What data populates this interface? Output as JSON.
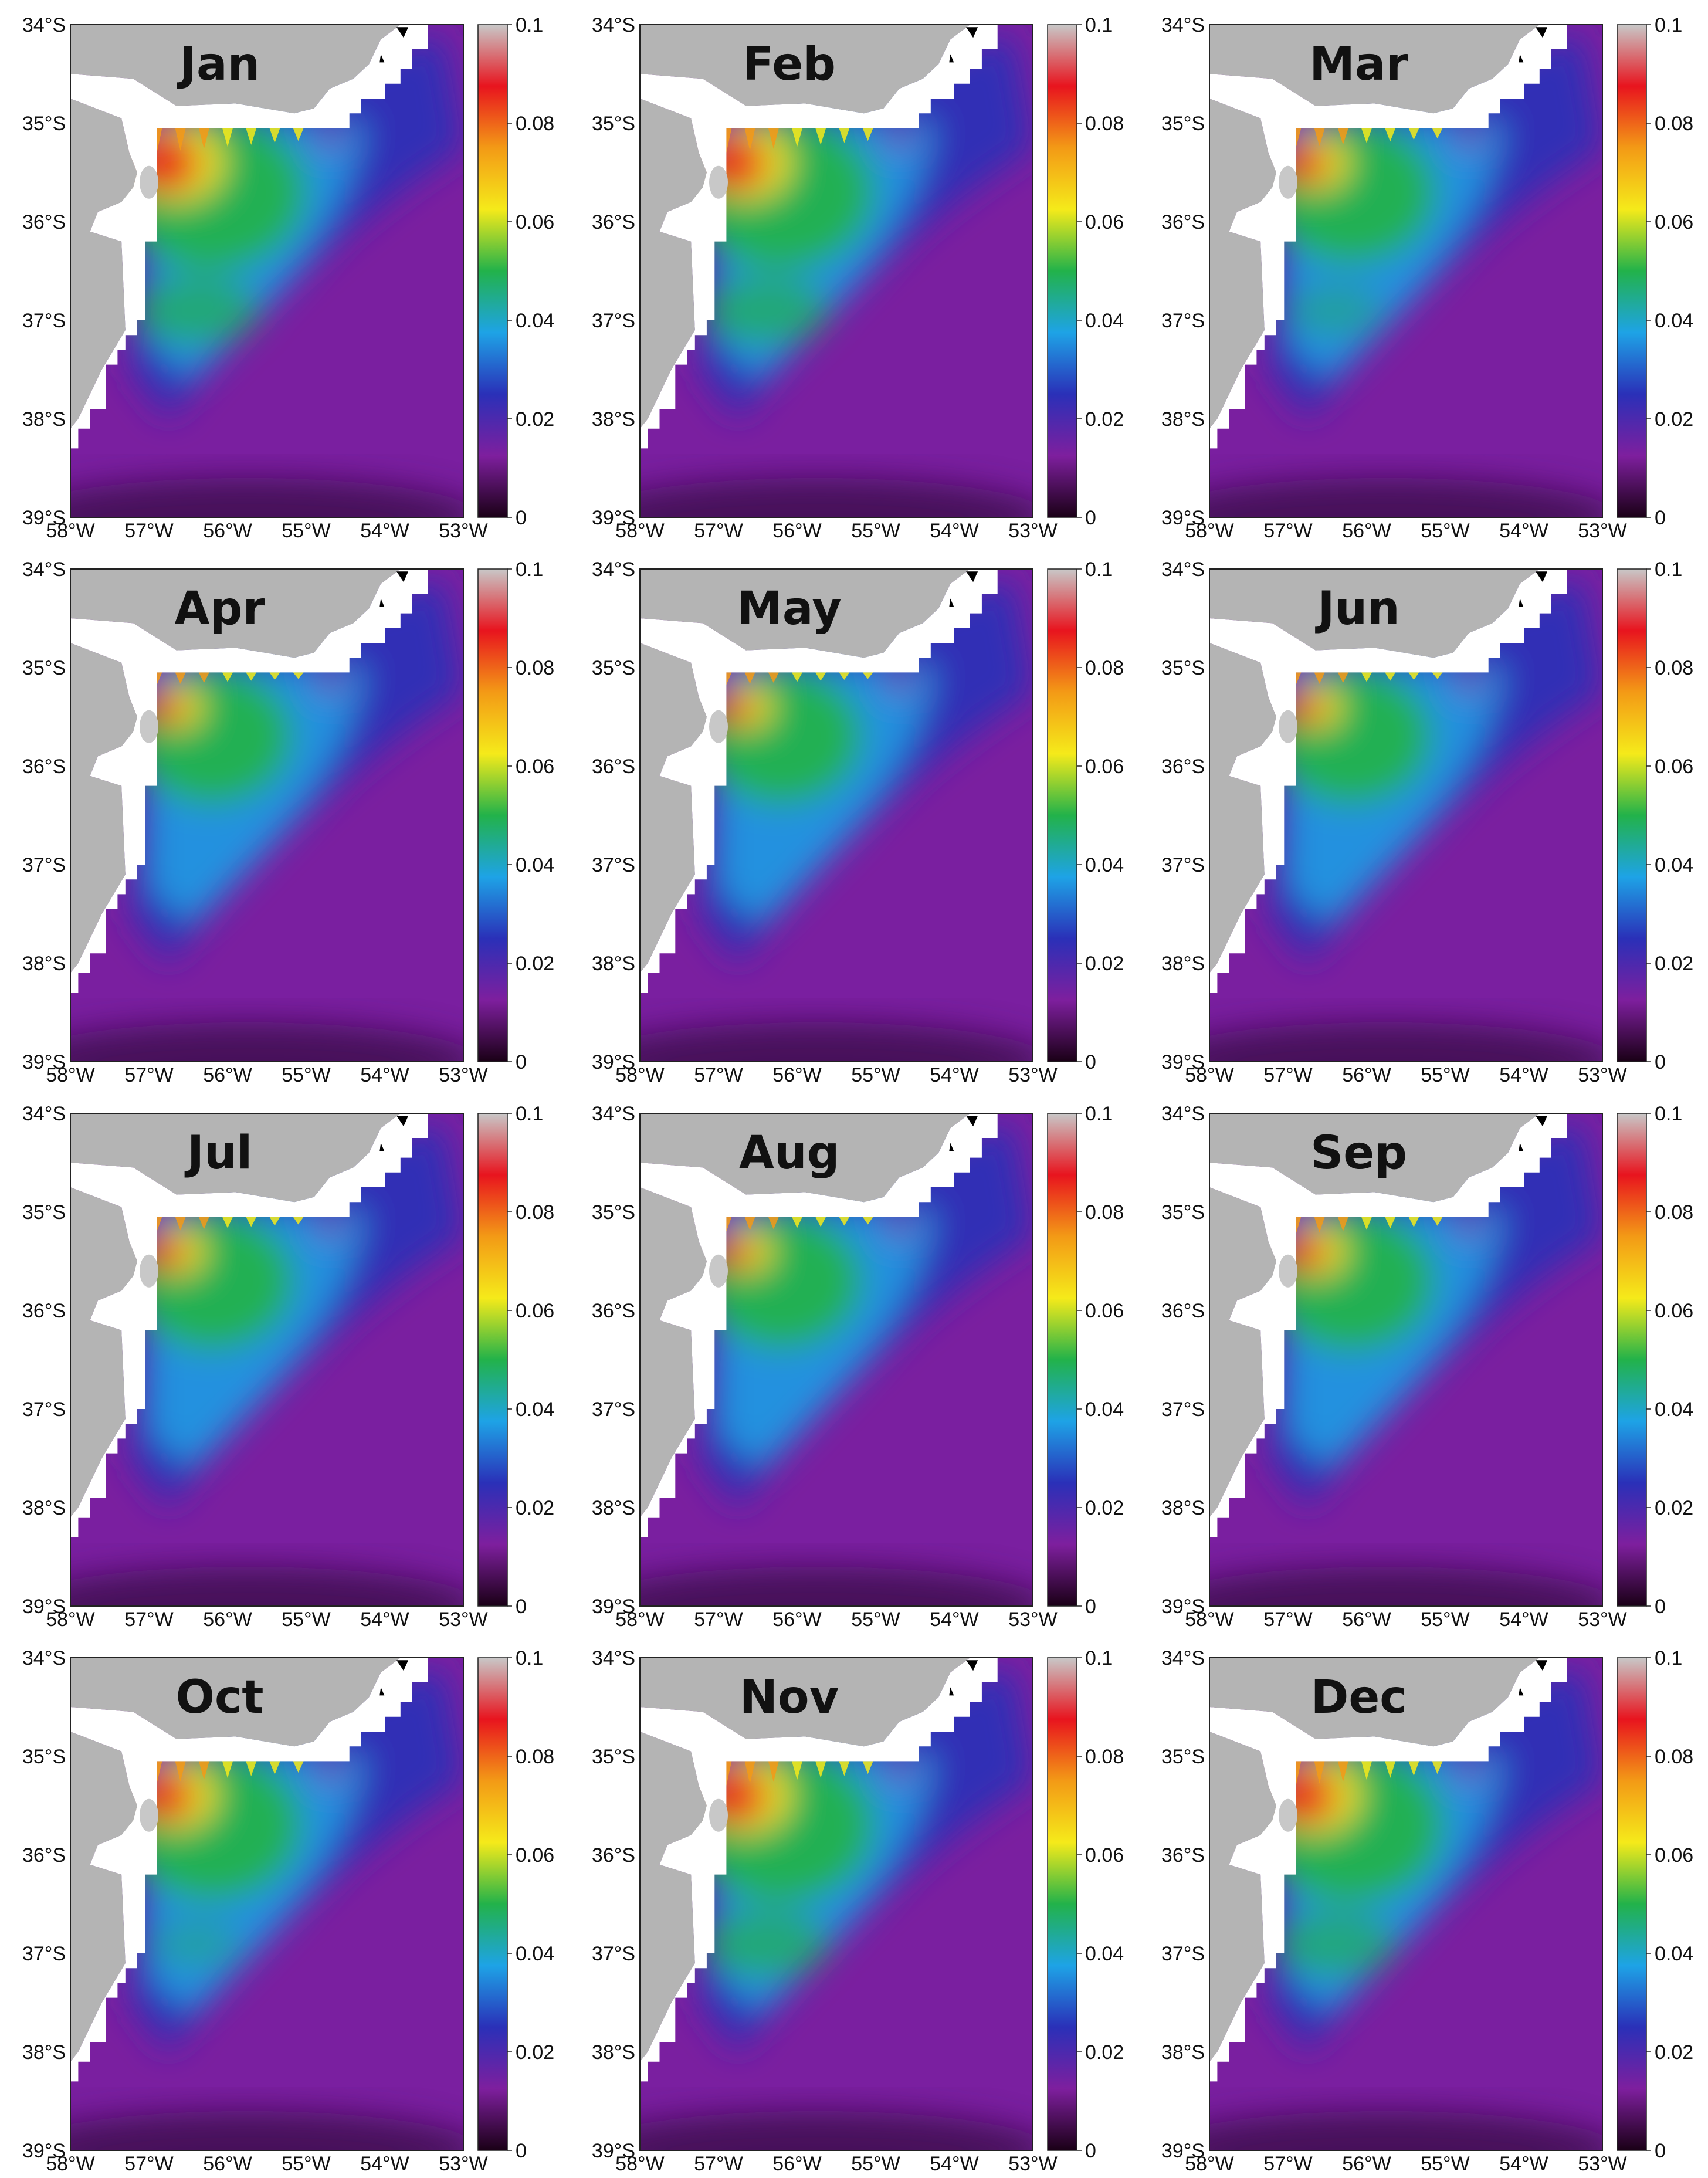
{
  "panels": [
    {
      "month": "Jan",
      "plume": 1.0,
      "bulge": 0.55,
      "stripes": 1.0
    },
    {
      "month": "Feb",
      "plume": 0.95,
      "bulge": 0.55,
      "stripes": 1.0
    },
    {
      "month": "Mar",
      "plume": 0.7,
      "bulge": 0.25,
      "stripes": 0.8
    },
    {
      "month": "Apr",
      "plume": 0.55,
      "bulge": 0.1,
      "stripes": 0.5
    },
    {
      "month": "May",
      "plume": 0.55,
      "bulge": 0.1,
      "stripes": 0.5
    },
    {
      "month": "Jun",
      "plume": 0.55,
      "bulge": 0.05,
      "stripes": 0.5
    },
    {
      "month": "Jul",
      "plume": 0.6,
      "bulge": 0.05,
      "stripes": 0.6
    },
    {
      "month": "Aug",
      "plume": 0.55,
      "bulge": 0.05,
      "stripes": 0.6
    },
    {
      "month": "Sep",
      "plume": 0.65,
      "bulge": 0.05,
      "stripes": 0.7
    },
    {
      "month": "Oct",
      "plume": 0.85,
      "bulge": 0.2,
      "stripes": 0.9
    },
    {
      "month": "Nov",
      "plume": 0.95,
      "bulge": 0.55,
      "stripes": 1.0
    },
    {
      "month": "Dec",
      "plume": 0.95,
      "bulge": 0.5,
      "stripes": 1.0
    }
  ],
  "axes": {
    "lat_ticks": [
      "34°S",
      "35°S",
      "36°S",
      "37°S",
      "38°S",
      "39°S"
    ],
    "lon_ticks": [
      "58°W",
      "57°W",
      "56°W",
      "55°W",
      "54°W",
      "53°W"
    ]
  },
  "colorbar": {
    "ticks": [
      "0",
      "0.02",
      "0.04",
      "0.06",
      "0.08",
      "0.1"
    ],
    "colors": [
      "#1a0016",
      "#7e1f9e",
      "#2a30b8",
      "#1ea3e6",
      "#22b24a",
      "#f5ea1a",
      "#f39a16",
      "#e8141e",
      "#c8c8c8"
    ]
  },
  "colors": {
    "land": "#b4b4b4",
    "ocean_background": "#7a1fa0",
    "mask": "#ffffff"
  }
}
